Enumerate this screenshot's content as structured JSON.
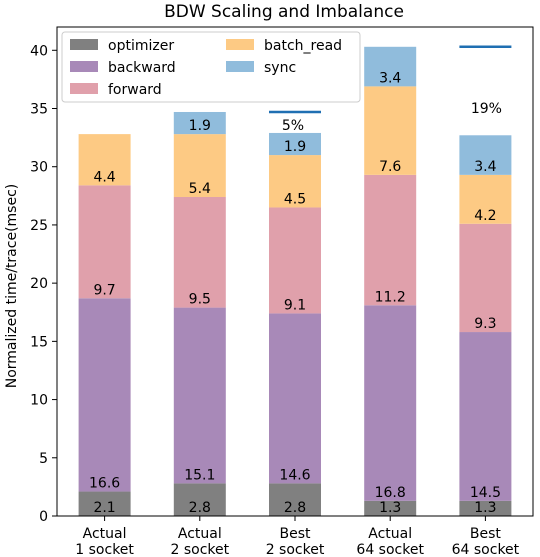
{
  "chart_data": {
    "type": "bar",
    "stacked": true,
    "title": "BDW Scaling and Imbalance",
    "ylabel": "Normalized time/trace(msec)",
    "xlabel": "",
    "ylim": [
      0,
      42
    ],
    "yticks": [
      0,
      5,
      10,
      15,
      20,
      25,
      30,
      35,
      40
    ],
    "categories": [
      [
        "Actual",
        "1 socket"
      ],
      [
        "Actual",
        "2 socket"
      ],
      [
        "Best",
        "2 socket"
      ],
      [
        "Actual",
        "64 socket"
      ],
      [
        "Best",
        "64 socket"
      ]
    ],
    "series": [
      {
        "name": "optimizer",
        "color": "#808080",
        "values": [
          2.1,
          2.8,
          2.8,
          1.3,
          1.3
        ]
      },
      {
        "name": "backward",
        "color": "#a889b8",
        "values": [
          16.6,
          15.1,
          14.6,
          16.8,
          14.5
        ]
      },
      {
        "name": "forward",
        "color": "#e0a0ab",
        "values": [
          9.7,
          9.5,
          9.1,
          11.2,
          9.3
        ]
      },
      {
        "name": "batch_read",
        "color": "#fdca84",
        "values": [
          4.4,
          5.4,
          4.5,
          7.6,
          4.2
        ]
      },
      {
        "name": "sync",
        "color": "#90bcdc",
        "values": [
          0,
          1.9,
          1.9,
          3.4,
          3.4
        ]
      }
    ],
    "segment_labels": [
      [
        "2.1",
        "16.6",
        "9.7",
        "4.4",
        ""
      ],
      [
        "2.8",
        "15.1",
        "9.5",
        "5.4",
        "1.9"
      ],
      [
        "2.8",
        "14.6",
        "9.1",
        "4.5",
        "1.9"
      ],
      [
        "1.3",
        "16.8",
        "11.2",
        "7.6",
        "3.4"
      ],
      [
        "1.3",
        "14.5",
        "9.3",
        "4.2",
        "3.4"
      ]
    ],
    "legend": {
      "placement": "top-left",
      "order": [
        "optimizer",
        "backward",
        "forward",
        "batch_read",
        "sync"
      ]
    },
    "annotations": [
      {
        "text": "5%",
        "ref_line_category": 2,
        "ref_line_value": 34.7
      },
      {
        "text": "19%",
        "ref_line_category": 4,
        "ref_line_value": 40.3
      }
    ],
    "grid": false
  }
}
